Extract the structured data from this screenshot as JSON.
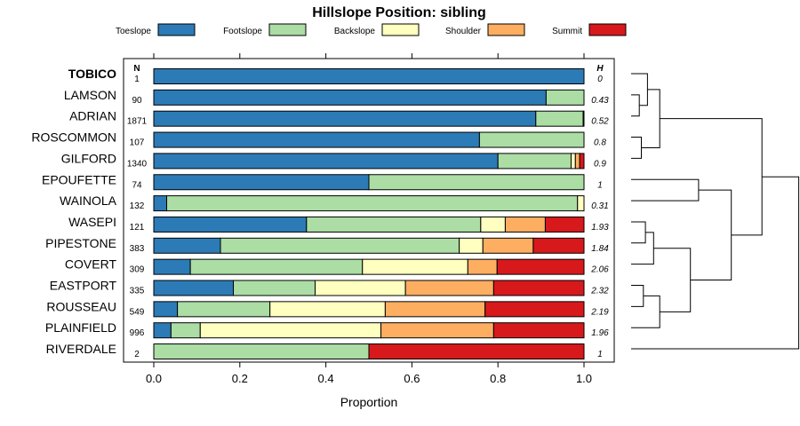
{
  "chart_data": {
    "type": "bar",
    "subtype": "stacked-horizontal-proportion",
    "title": "Hillslope Position: sibling",
    "xlabel": "Proportion",
    "ylabel": "",
    "xlim": [
      0,
      1
    ],
    "xticks": [
      "0.0",
      "0.2",
      "0.4",
      "0.6",
      "0.8",
      "1.0"
    ],
    "n_header": "N",
    "h_header": "H",
    "legend": [
      {
        "name": "Toeslope",
        "color": "#2c7bb6"
      },
      {
        "name": "Footslope",
        "color": "#abdda4"
      },
      {
        "name": "Backslope",
        "color": "#ffffbf"
      },
      {
        "name": "Shoulder",
        "color": "#fdae61"
      },
      {
        "name": "Summit",
        "color": "#d7191c"
      }
    ],
    "series": [
      {
        "name": "TOBICO",
        "bold": true,
        "n": "1",
        "h": "0",
        "values": [
          1.0,
          0,
          0,
          0,
          0
        ]
      },
      {
        "name": "LAMSON",
        "bold": false,
        "n": "90",
        "h": "0.43",
        "values": [
          0.912,
          0.088,
          0,
          0,
          0
        ]
      },
      {
        "name": "ADRIAN",
        "bold": false,
        "n": "1871",
        "h": "0.52",
        "values": [
          0.888,
          0.11,
          0.002,
          0,
          0
        ]
      },
      {
        "name": "ROSCOMMON",
        "bold": false,
        "n": "107",
        "h": "0.8",
        "values": [
          0.757,
          0.243,
          0,
          0,
          0
        ]
      },
      {
        "name": "GILFORD",
        "bold": false,
        "n": "1340",
        "h": "0.9",
        "values": [
          0.8,
          0.17,
          0.01,
          0.01,
          0.01
        ]
      },
      {
        "name": "EPOUFETTE",
        "bold": false,
        "n": "74",
        "h": "1",
        "values": [
          0.5,
          0.5,
          0,
          0,
          0
        ]
      },
      {
        "name": "WAINOLA",
        "bold": false,
        "n": "132",
        "h": "0.31",
        "values": [
          0.03,
          0.955,
          0.015,
          0,
          0
        ]
      },
      {
        "name": "WASEPI",
        "bold": false,
        "n": "121",
        "h": "1.93",
        "values": [
          0.355,
          0.405,
          0.057,
          0.093,
          0.09
        ]
      },
      {
        "name": "PIPESTONE",
        "bold": false,
        "n": "383",
        "h": "1.84",
        "values": [
          0.155,
          0.555,
          0.055,
          0.117,
          0.118
        ]
      },
      {
        "name": "COVERT",
        "bold": false,
        "n": "309",
        "h": "2.06",
        "values": [
          0.085,
          0.4,
          0.245,
          0.068,
          0.202
        ]
      },
      {
        "name": "EASTPORT",
        "bold": false,
        "n": "335",
        "h": "2.32",
        "values": [
          0.185,
          0.19,
          0.21,
          0.205,
          0.21
        ]
      },
      {
        "name": "ROUSSEAU",
        "bold": false,
        "n": "549",
        "h": "2.19",
        "values": [
          0.055,
          0.215,
          0.268,
          0.232,
          0.23
        ]
      },
      {
        "name": "PLAINFIELD",
        "bold": false,
        "n": "996",
        "h": "1.96",
        "values": [
          0.04,
          0.068,
          0.42,
          0.262,
          0.21
        ]
      },
      {
        "name": "RIVERDALE",
        "bold": false,
        "n": "2",
        "h": "1",
        "values": [
          0,
          0.5,
          0,
          0,
          0.5
        ]
      }
    ],
    "dendrogram": {
      "description": "hierarchical clustering of series shown at right",
      "leaf_order": [
        "TOBICO",
        "LAMSON",
        "ADRIAN",
        "ROSCOMMON",
        "GILFORD",
        "EPOUFETTE",
        "WAINOLA",
        "WASEPI",
        "PIPESTONE",
        "COVERT",
        "EASTPORT",
        "ROUSSEAU",
        "PLAINFIELD",
        "RIVERDALE"
      ],
      "merges": [
        {
          "a": "LAMSON",
          "b": "ADRIAN",
          "height": 0.04
        },
        {
          "a": "ROSCOMMON",
          "b": "GILFORD",
          "height": 0.05
        },
        {
          "a": "TOBICO",
          "b": "LAMSON+ADRIAN",
          "height": 0.08
        },
        {
          "a": "TOBICO+LAMSON+ADRIAN",
          "b": "ROSCOMMON+GILFORD",
          "height": 0.14
        },
        {
          "a": "WASEPI",
          "b": "PIPESTONE",
          "height": 0.07
        },
        {
          "a": "EASTPORT",
          "b": "ROUSSEAU",
          "height": 0.06
        },
        {
          "a": "EASTPORT+ROUSSEAU",
          "b": "PLAINFIELD",
          "height": 0.14
        },
        {
          "a": "WASEPI+PIPESTONE",
          "b": "COVERT",
          "height": 0.11
        },
        {
          "a": "WASEPI+PIPESTONE+COVERT",
          "b": "EASTPORT+ROUSSEAU+PLAINFIELD",
          "height": 0.29
        },
        {
          "a": "EPOUFETTE",
          "b": "WAINOLA",
          "height": 0.33
        },
        {
          "a": "EPOUFETTE+WAINOLA",
          "b": "WASEPI+PIPESTONE+COVERT+EASTPORT+ROUSSEAU+PLAINFIELD",
          "height": 0.49
        },
        {
          "a": "TOBICO+LAMSON+ADRIAN+ROSCOMMON+GILFORD",
          "b": "EPOUFETTE+WAINOLA+WASEPI+PIPESTONE+COVERT+EASTPORT+ROUSSEAU+PLAINFIELD",
          "height": 0.64
        },
        {
          "a": "ALL_BUT_RIVERDALE",
          "b": "RIVERDALE",
          "height": 0.82
        }
      ]
    }
  }
}
